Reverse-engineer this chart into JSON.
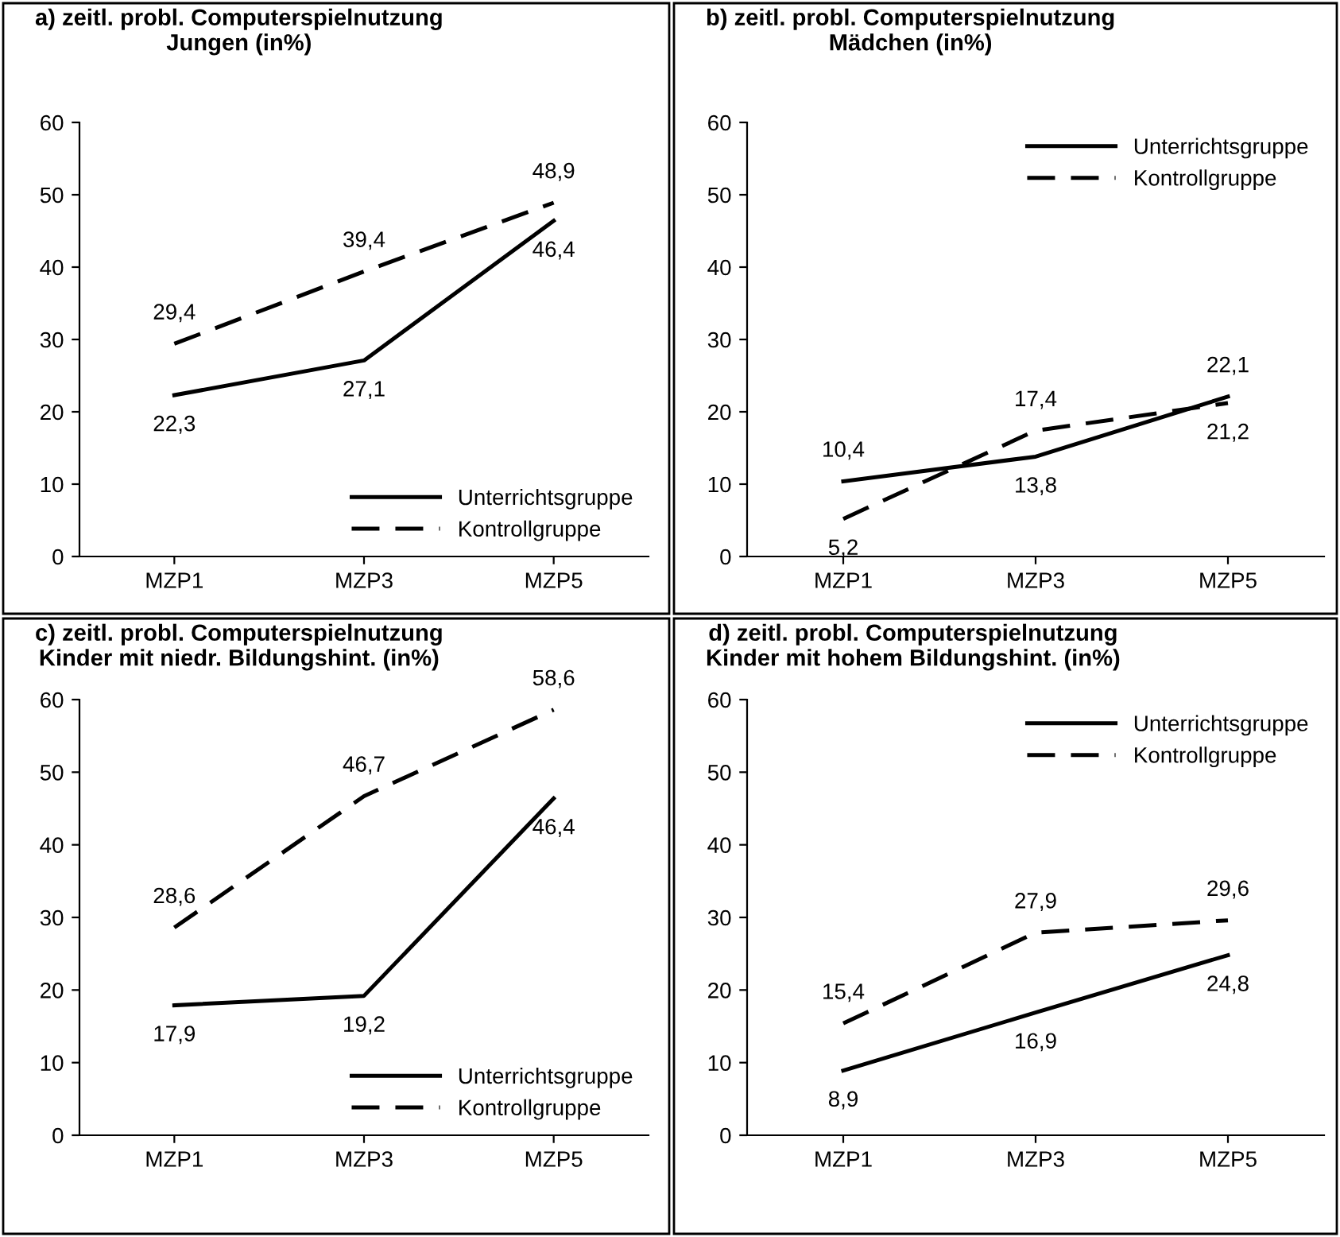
{
  "chart_data": [
    {
      "type": "line",
      "title": "a) zeitl. probl. Computerspielnutzung\nJungen (in%)",
      "categories": [
        "MZP1",
        "MZP3",
        "MZP5"
      ],
      "ylim": [
        0,
        60
      ],
      "yticks": [
        0,
        10,
        20,
        30,
        40,
        50,
        60
      ],
      "grid": false,
      "legend": "bottom right",
      "marker": "none",
      "series": [
        {
          "name": "Unterrichtsgruppe",
          "color": "#000000",
          "line_style": "solid",
          "values": [
            22.3,
            27.1,
            46.4
          ],
          "value_labels": [
            "22,3",
            "27,1",
            "46,4"
          ]
        },
        {
          "name": "Kontrollgruppe",
          "color": "#000000",
          "line_style": "dashed",
          "values": [
            29.4,
            39.4,
            48.9
          ],
          "value_labels": [
            "29,4",
            "39,4",
            "48,9"
          ]
        }
      ]
    },
    {
      "type": "line",
      "title": "b) zeitl. probl. Computerspielnutzung\nMädchen (in%)",
      "categories": [
        "MZP1",
        "MZP3",
        "MZP5"
      ],
      "ylim": [
        0,
        60
      ],
      "yticks": [
        0,
        10,
        20,
        30,
        40,
        50,
        60
      ],
      "grid": false,
      "legend": "top right",
      "marker": "none",
      "series": [
        {
          "name": "Unterrichtsgruppe",
          "color": "#000000",
          "line_style": "solid",
          "values": [
            10.4,
            13.8,
            22.1
          ],
          "value_labels": [
            "10,4",
            "13,8",
            "22,1"
          ]
        },
        {
          "name": "Kontrollgruppe",
          "color": "#000000",
          "line_style": "dashed",
          "values": [
            5.2,
            17.4,
            21.2
          ],
          "value_labels": [
            "5,2",
            "17,4",
            "21,2"
          ]
        }
      ]
    },
    {
      "type": "line",
      "title": "c) zeitl. probl. Computerspielnutzung\nKinder mit niedr. Bildungshint. (in%)",
      "categories": [
        "MZP1",
        "MZP3",
        "MZP5"
      ],
      "ylim": [
        0,
        60
      ],
      "yticks": [
        0,
        10,
        20,
        30,
        40,
        50,
        60
      ],
      "grid": false,
      "legend": "bottom right",
      "marker": "none",
      "series": [
        {
          "name": "Unterrichtsgruppe",
          "color": "#000000",
          "line_style": "solid",
          "values": [
            17.9,
            19.2,
            46.4
          ],
          "value_labels": [
            "17,9",
            "19,2",
            "46,4"
          ]
        },
        {
          "name": "Kontrollgruppe",
          "color": "#000000",
          "line_style": "dashed",
          "values": [
            28.6,
            46.7,
            58.6
          ],
          "value_labels": [
            "28,6",
            "46,7",
            "58,6"
          ]
        }
      ]
    },
    {
      "type": "line",
      "title": "d) zeitl. probl. Computerspielnutzung\nKinder mit hohem Bildungshint. (in%)",
      "categories": [
        "MZP1",
        "MZP3",
        "MZP5"
      ],
      "ylim": [
        0,
        60
      ],
      "yticks": [
        0,
        10,
        20,
        30,
        40,
        50,
        60
      ],
      "grid": false,
      "legend": "top right",
      "marker": "none",
      "series": [
        {
          "name": "Unterrichtsgruppe",
          "color": "#000000",
          "line_style": "solid",
          "values": [
            8.9,
            16.9,
            24.8
          ],
          "value_labels": [
            "8,9",
            "16,9",
            "24,8"
          ]
        },
        {
          "name": "Kontrollgruppe",
          "color": "#000000",
          "line_style": "dashed",
          "values": [
            15.4,
            27.9,
            29.6
          ],
          "value_labels": [
            "15,4",
            "27,9",
            "29,6"
          ]
        }
      ]
    }
  ]
}
